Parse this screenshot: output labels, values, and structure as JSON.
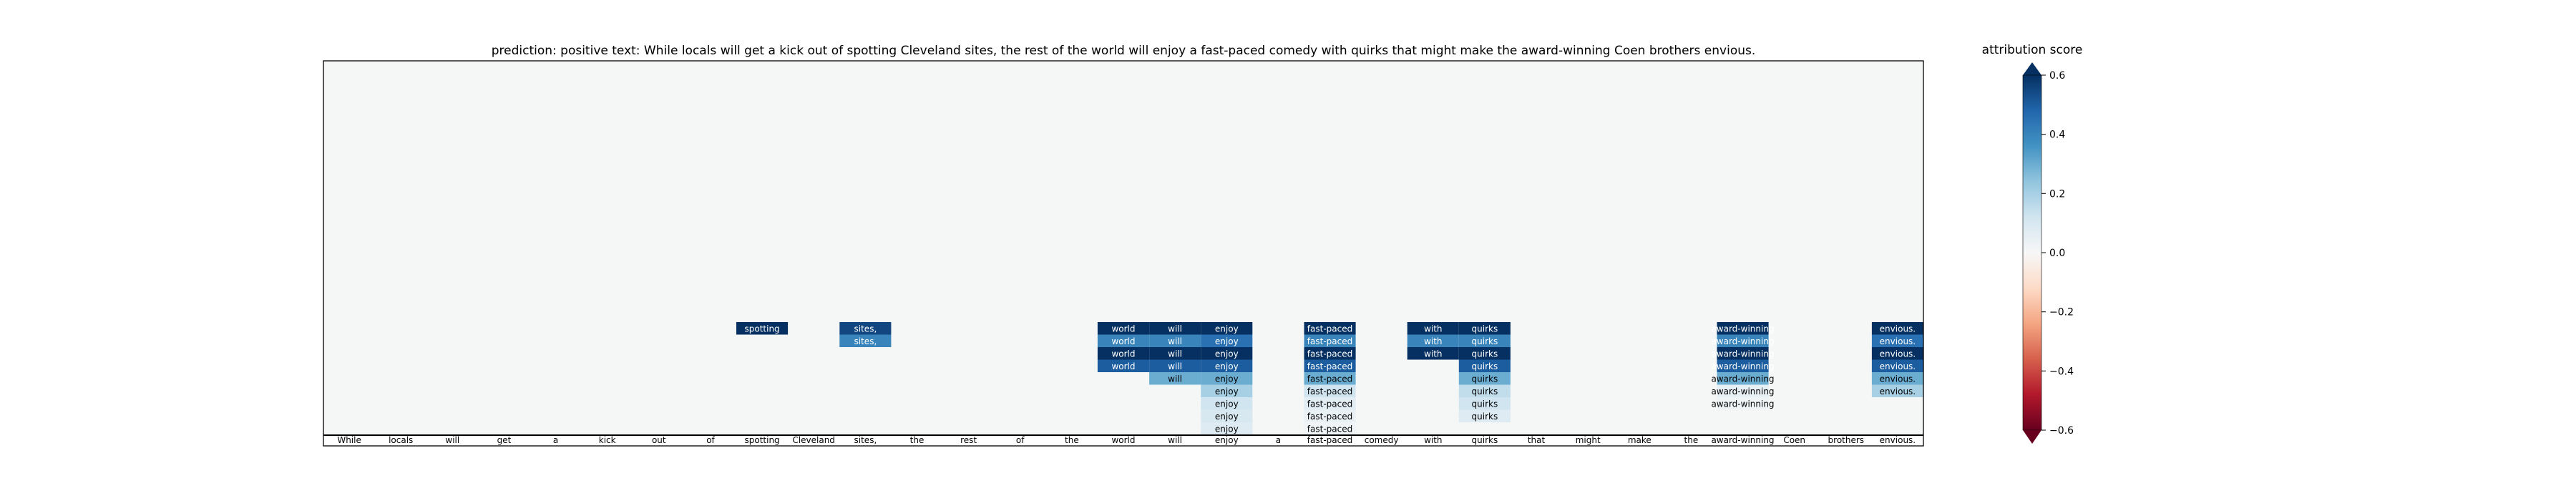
{
  "chart_data": {
    "type": "heatmap",
    "title": "prediction:  positive     text:  While locals will get a kick out of spotting Cleveland sites, the rest of the world will enjoy a fast-paced comedy with quirks that might make the award-winning Coen brothers envious.",
    "tokens": [
      "While",
      "locals",
      "will",
      "get",
      "a",
      "kick",
      "out",
      "of",
      "spotting",
      "Cleveland",
      "sites,",
      "the",
      "rest",
      "of",
      "the",
      "world",
      "will",
      "enjoy",
      "a",
      "fast-paced",
      "comedy",
      "with",
      "quirks",
      "that",
      "might",
      "make",
      "the",
      "award-winning",
      "Coen",
      "brothers",
      "envious."
    ],
    "rows": 9,
    "cells": [
      {
        "token": 8,
        "label": "spotting",
        "scores": [
          0.6
        ]
      },
      {
        "token": 10,
        "label": "sites,",
        "scores": [
          0.55,
          0.4
        ]
      },
      {
        "token": 15,
        "label": "world",
        "scores": [
          0.6,
          0.4,
          0.65,
          0.5
        ]
      },
      {
        "token": 16,
        "label": "will",
        "scores": [
          0.6,
          0.4,
          0.65,
          0.5,
          0.3
        ]
      },
      {
        "token": 17,
        "label": "enjoy",
        "scores": [
          0.6,
          0.45,
          0.65,
          0.5,
          0.3,
          0.2,
          0.12,
          0.1,
          0.08
        ]
      },
      {
        "token": 19,
        "label": "fast-paced",
        "scores": [
          0.6,
          0.4,
          0.65,
          0.5,
          0.3,
          0.12,
          0.07,
          0.04,
          0.02
        ]
      },
      {
        "token": 21,
        "label": "with",
        "scores": [
          0.6,
          0.4,
          0.65
        ]
      },
      {
        "token": 22,
        "label": "quirks",
        "scores": [
          0.6,
          0.4,
          0.65,
          0.5,
          0.3,
          0.15,
          0.12,
          0.08
        ]
      },
      {
        "token": 27,
        "label": "award-winning",
        "scores": [
          0.6,
          0.4,
          0.65,
          0.5,
          0.3,
          0.05,
          0.03
        ]
      },
      {
        "token": 30,
        "label": "envious.",
        "scores": [
          0.6,
          0.45,
          0.65,
          0.5,
          0.3,
          0.2
        ]
      }
    ],
    "colorbar": {
      "label": "attribution score",
      "range": [
        -0.6,
        0.6
      ],
      "ticks": [
        "0.6",
        "0.4",
        "0.2",
        "0.0",
        "−0.2",
        "−0.4",
        "−0.6"
      ],
      "tick_values": [
        0.6,
        0.4,
        0.2,
        0.0,
        -0.2,
        -0.4,
        -0.6
      ],
      "colormap": "RdBu"
    },
    "background_color": "#f5f7f6"
  }
}
